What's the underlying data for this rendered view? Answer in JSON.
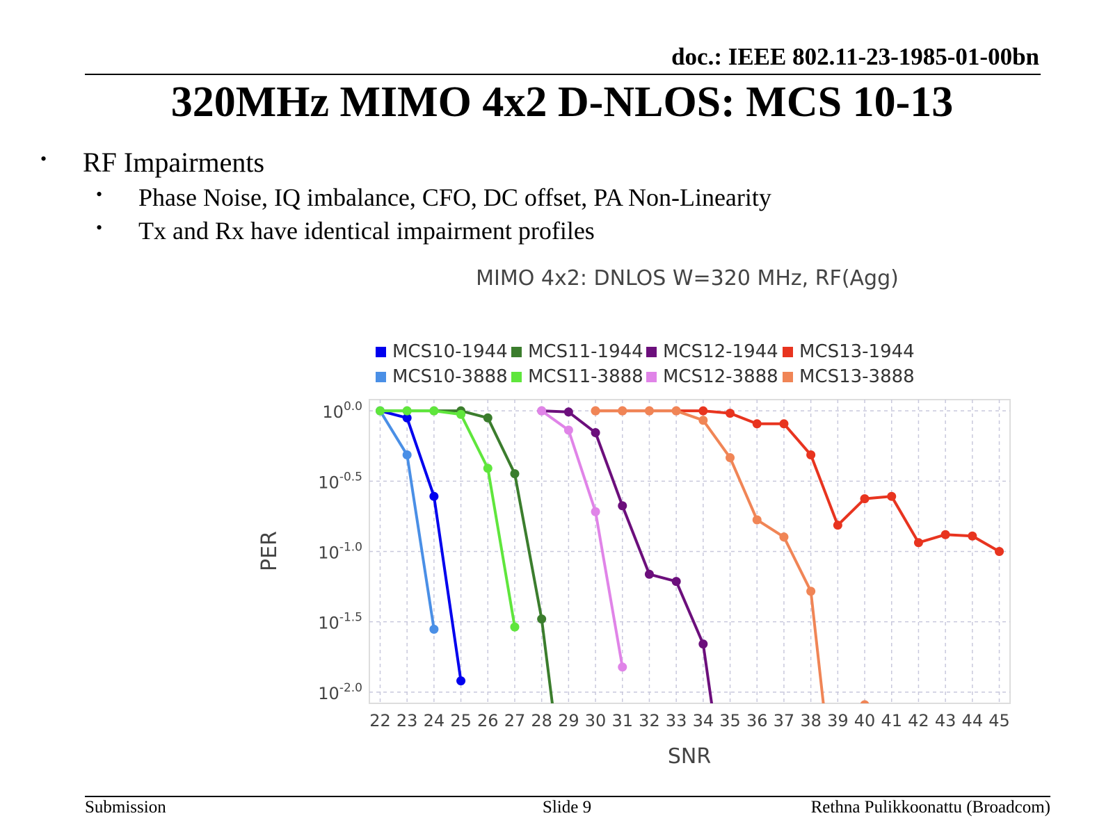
{
  "header": {
    "doc_id": "doc.: IEEE 802.11-23-1985-01-00bn"
  },
  "title": "320MHz MIMO 4x2 D-NLOS: MCS 10-13",
  "bullets": [
    {
      "text": "RF Impairments",
      "children": [
        "Phase Noise, IQ imbalance, CFO, DC offset, PA Non-Linearity",
        "Tx and Rx have identical impairment profiles"
      ]
    }
  ],
  "bullet_glyph": "•",
  "footer": {
    "left": "Submission",
    "center": "Slide 9",
    "right": "Rethna Pulikkoonattu (Broadcom)"
  },
  "chart_data": {
    "type": "line",
    "title": "MIMO 4x2: DNLOS W=320 MHz, RF(Agg)",
    "xlabel": "SNR",
    "ylabel": "PER",
    "yscale": "log10",
    "xlim": [
      21.6,
      45.4
    ],
    "ylim_log10": [
      -2.08,
      0.08
    ],
    "x_ticks": [
      22,
      23,
      24,
      25,
      26,
      27,
      28,
      29,
      30,
      31,
      32,
      33,
      34,
      35,
      36,
      37,
      38,
      39,
      40,
      41,
      42,
      43,
      44,
      45
    ],
    "y_ticks": [
      {
        "value": 0,
        "base": "10",
        "exp": "0.0"
      },
      {
        "value": -0.5,
        "base": "10",
        "exp": "-0.5"
      },
      {
        "value": -1,
        "base": "10",
        "exp": "-1.0"
      },
      {
        "value": -1.5,
        "base": "10",
        "exp": "-1.5"
      },
      {
        "value": -2,
        "base": "10",
        "exp": "-2.0"
      }
    ],
    "grid": true,
    "legend_position": "top",
    "series": [
      {
        "name": "MCS10-1944",
        "color": "#0000ee",
        "x": [
          22,
          23,
          24,
          25
        ],
        "log10_per": [
          0,
          -0.05,
          -0.608,
          -1.92
        ]
      },
      {
        "name": "MCS11-1944",
        "color": "#3b7d2d",
        "x": [
          22,
          23,
          24,
          25,
          26,
          27,
          28,
          29
        ],
        "log10_per": [
          0,
          0,
          0,
          0,
          -0.05,
          -0.447,
          -1.48,
          -3.0
        ]
      },
      {
        "name": "MCS12-1944",
        "color": "#6c0f7c",
        "x": [
          28,
          29,
          30,
          31,
          32,
          33,
          34,
          35
        ],
        "log10_per": [
          0,
          -0.008,
          -0.155,
          -0.675,
          -1.162,
          -1.213,
          -1.658,
          -3.0
        ]
      },
      {
        "name": "MCS13-1944",
        "color": "#e8341f",
        "x": [
          30,
          31,
          32,
          33,
          34,
          35,
          36,
          37,
          38,
          39,
          40,
          41,
          42,
          43,
          44,
          45
        ],
        "log10_per": [
          0,
          0,
          0,
          0,
          0,
          -0.017,
          -0.092,
          -0.092,
          -0.313,
          -0.813,
          -0.625,
          -0.608,
          -0.937,
          -0.88,
          -0.89,
          -1.0
        ]
      },
      {
        "name": "MCS10-3888",
        "color": "#4a8fe6",
        "x": [
          22,
          23,
          24
        ],
        "log10_per": [
          0,
          -0.313,
          -1.553
        ]
      },
      {
        "name": "MCS11-3888",
        "color": "#5fe63c",
        "x": [
          22,
          23,
          24,
          25,
          26,
          27
        ],
        "log10_per": [
          0,
          0,
          0,
          -0.025,
          -0.408,
          -1.537
        ]
      },
      {
        "name": "MCS12-3888",
        "color": "#e084e8",
        "x": [
          28,
          29,
          30,
          31
        ],
        "log10_per": [
          0,
          -0.137,
          -0.717,
          -1.822
        ]
      },
      {
        "name": "MCS13-3888",
        "color": "#f08556",
        "x": [
          30,
          31,
          32,
          33,
          34,
          35,
          36,
          37,
          38,
          39,
          40
        ],
        "log10_per": [
          0,
          0,
          0,
          0,
          -0.067,
          -0.333,
          -0.775,
          -0.897,
          -1.283,
          -3.0,
          -2.09
        ]
      }
    ]
  }
}
